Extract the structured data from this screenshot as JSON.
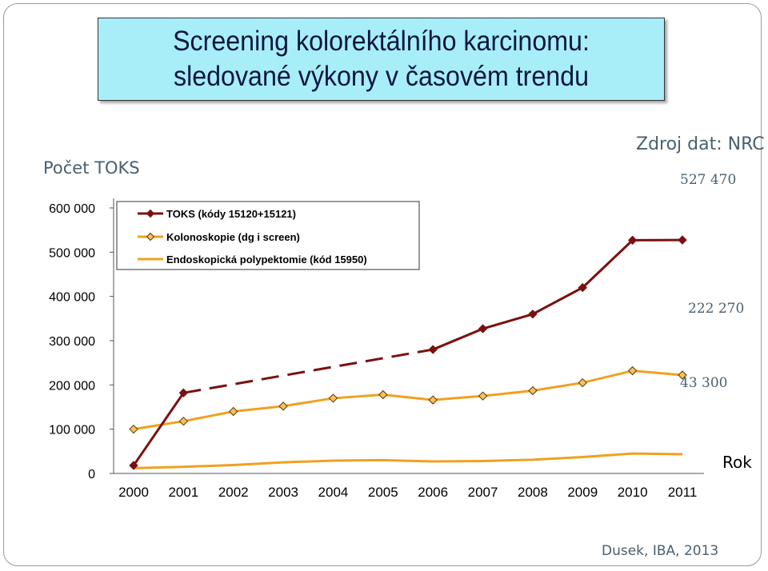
{
  "page": {
    "title_line1": "Screening kolorektálního karcinomu:",
    "title_line2": "sledované výkony v časovém trendu",
    "source": "Zdroj dat: NRC",
    "credit": "Dusek, IBA, 2013"
  },
  "colors": {
    "toks": "#7b1010",
    "kolonoskopie": "#f0a020",
    "polypektomie": "#f0a020",
    "marker_fill_kolonoskopie": "#f5c060",
    "title_bg": "#a8eef9"
  },
  "chart_data": {
    "type": "line",
    "title": "",
    "ylabel": "Počet TOKS",
    "xlabel": "Rok",
    "ylim": [
      0,
      600000
    ],
    "yticks": [
      0,
      100000,
      200000,
      300000,
      400000,
      500000,
      600000
    ],
    "ytick_labels": [
      "0",
      "100 000",
      "200 000",
      "300 000",
      "400 000",
      "500 000",
      "600 000"
    ],
    "x": [
      "2000",
      "2001",
      "2002",
      "2003",
      "2004",
      "2005",
      "2006",
      "2007",
      "2008",
      "2009",
      "2010",
      "2011"
    ],
    "legend_position": "top-left",
    "grid": false,
    "series": [
      {
        "name": "TOKS (kódy 15120+15121)",
        "values": [
          18000,
          182000,
          null,
          null,
          null,
          null,
          280000,
          327000,
          360000,
          420000,
          527000,
          527470
        ],
        "dashed_between": [
          1,
          6
        ],
        "marker": "diamond"
      },
      {
        "name": "Kolonoskopie (dg i screen)",
        "values": [
          100000,
          118000,
          140000,
          152000,
          170000,
          178000,
          166000,
          175000,
          187000,
          205000,
          232000,
          222270
        ],
        "marker": "diamond"
      },
      {
        "name": "Endoskopická polypektomie (kód 15950)",
        "values": [
          12000,
          15000,
          19000,
          25000,
          29000,
          30000,
          27000,
          28000,
          31000,
          37000,
          45000,
          43300
        ],
        "marker": "none"
      }
    ],
    "annotations": [
      "527 470",
      "222 270",
      "43 300"
    ]
  }
}
